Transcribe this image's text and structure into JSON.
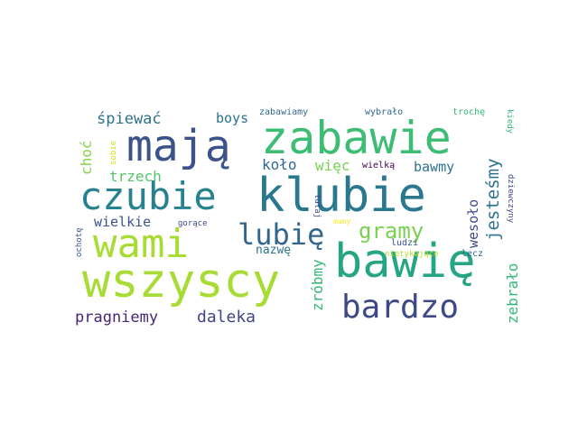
{
  "words": [
    {
      "text": "klubie",
      "color": "#2a788e"
    },
    {
      "text": "wszyscy",
      "color": "#a8db34"
    },
    {
      "text": "zabawie",
      "color": "#3dbc74"
    },
    {
      "text": "bawię",
      "color": "#25a584"
    },
    {
      "text": "czubie",
      "color": "#26828e"
    },
    {
      "text": "wami",
      "color": "#a8db34"
    },
    {
      "text": "mają",
      "color": "#3b528b"
    },
    {
      "text": "bardzo",
      "color": "#3e4989"
    },
    {
      "text": "lubię",
      "color": "#31678e"
    },
    {
      "text": "gramy",
      "color": "#7ad151"
    },
    {
      "text": "jesteśmy",
      "color": "#2c728e"
    },
    {
      "text": "daleka",
      "color": "#414487"
    },
    {
      "text": "pragniemy",
      "color": "#482677"
    },
    {
      "text": "zróbmy",
      "color": "#35b779"
    },
    {
      "text": "zebrało",
      "color": "#35b779"
    },
    {
      "text": "śpiewać",
      "color": "#2c728e"
    },
    {
      "text": "koło",
      "color": "#31688e"
    },
    {
      "text": "więc",
      "color": "#7ad151"
    },
    {
      "text": "bawmy",
      "color": "#2c728e"
    },
    {
      "text": "wesoło",
      "color": "#3e4989"
    },
    {
      "text": "choć",
      "color": "#86d549"
    },
    {
      "text": "trzech",
      "color": "#52c569"
    },
    {
      "text": "wielkie",
      "color": "#3b528b"
    },
    {
      "text": "boys",
      "color": "#2c728e"
    },
    {
      "text": "nazwę",
      "color": "#2c728e"
    },
    {
      "text": "wielką",
      "color": "#440154"
    },
    {
      "text": "zabawiamy",
      "color": "#31688e"
    },
    {
      "text": "wybrało",
      "color": "#31688e"
    },
    {
      "text": "trochę",
      "color": "#35b779"
    },
    {
      "text": "kiedy",
      "color": "#35b779"
    },
    {
      "text": "sobie",
      "color": "#d2e21b"
    },
    {
      "text": "ochotę",
      "color": "#3b528b"
    },
    {
      "text": "gorące",
      "color": "#3e4989"
    },
    {
      "text": "tutaj",
      "color": "#3e4989"
    },
    {
      "text": "mamy",
      "color": "#fde725"
    },
    {
      "text": "ludzi",
      "color": "#3b528b"
    },
    {
      "text": "lecz",
      "color": "#31688e"
    },
    {
      "text": "dziewczyny",
      "color": "#3e4989"
    },
    {
      "text": "nietykające",
      "color": "#b5de2b"
    }
  ]
}
